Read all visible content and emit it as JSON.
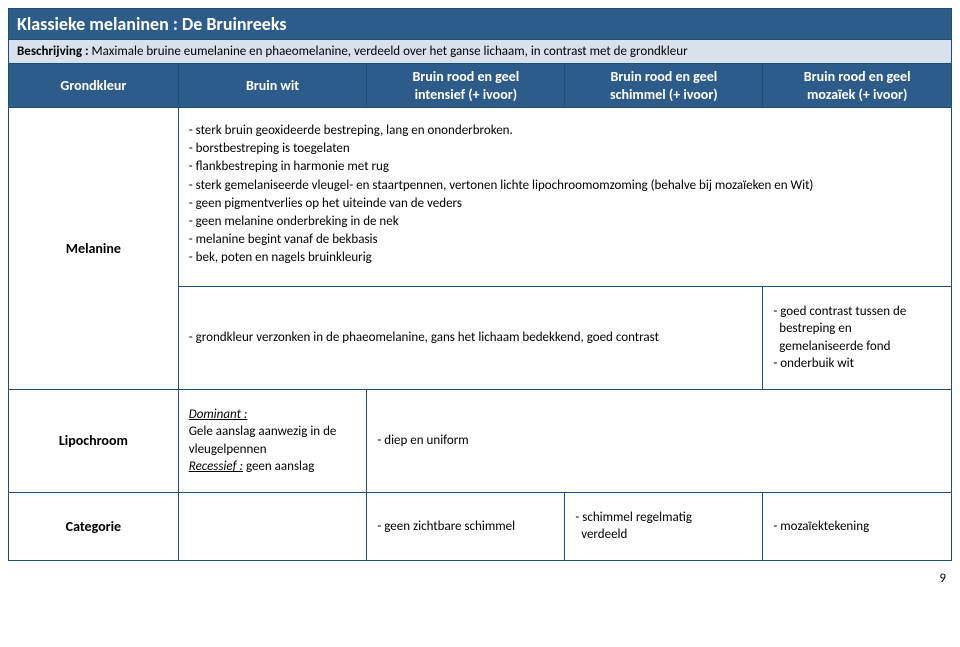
{
  "title": "Klassieke melaninen : De Bruinreeks",
  "description_label": "Beschrijving :",
  "description_text": " Maximale bruine eumelanine en phaeomelanine, verdeeld over het ganse lichaam, in contrast met de grondkleur",
  "headers": {
    "c1": "Grondkleur",
    "c2": "Bruin wit",
    "c3a": "Bruin rood en geel",
    "c3b": "intensief (+ ivoor)",
    "c4a": "Bruin rood en geel",
    "c4b": "schimmel (+ ivoor)",
    "c5a": "Bruin rood en geel",
    "c5b": "mozaïek (+ ivoor)"
  },
  "row_melanine": {
    "label": "Melanine",
    "l1": "- sterk bruin geoxideerde bestreping, lang en ononderbroken.",
    "l2": "- borstbestreping is toegelaten",
    "l3": "- flankbestreping in harmonie met rug",
    "l4": "- sterk gemelaniseerde vleugel- en staartpennen, vertonen lichte lipochroomomzoming (behalve bij mozaïeken en Wit)",
    "l5": "- geen pigmentverlies op het uiteinde van de veders",
    "l6": "- geen melanine onderbreking in de nek",
    "l7": "- melanine begint vanaf de bekbasis",
    "l8": "- bek, poten en nagels bruinkleurig"
  },
  "row_sub": {
    "span_text": "- grondkleur verzonken in de phaeomelanine, gans het lichaam bedekkend, goed contrast",
    "col5a": "- goed contrast tussen de",
    "col5b": "  bestreping en",
    "col5c": "  gemelaniseerde fond",
    "col5d": "- onderbuik wit"
  },
  "row_lipo": {
    "label": "Lipochroom",
    "c2a": "Dominant :",
    "c2b": "Gele aanslag aanwezig in de vleugelpennen",
    "c2c": "Recessief :",
    "c2d": " geen aanslag",
    "c3": "- diep en uniform"
  },
  "row_cat": {
    "label": "Categorie",
    "c3": "- geen zichtbare schimmel",
    "c4a": "- schimmel regelmatig",
    "c4b": "  verdeeld",
    "c5": "- mozaïektekening"
  },
  "page": "9"
}
